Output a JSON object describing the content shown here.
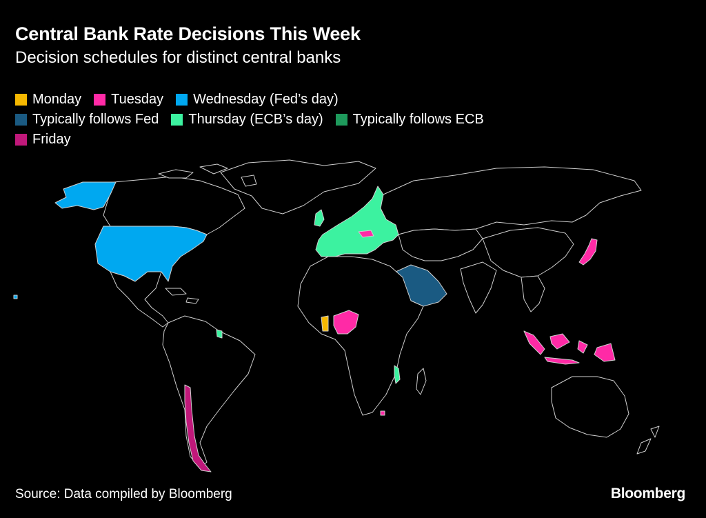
{
  "title": "Central Bank Rate Decisions This Week",
  "subtitle": "Decision schedules for distinct central banks",
  "legend": [
    {
      "label": "Monday",
      "color": "#f5b800"
    },
    {
      "label": "Tuesday",
      "color": "#ff2aa6"
    },
    {
      "label": "Wednesday (Fed’s day)",
      "color": "#00a8f0"
    },
    {
      "label": "Typically follows Fed",
      "color": "#1a5a82"
    },
    {
      "label": "Thursday (ECB’s day)",
      "color": "#3cf2a0"
    },
    {
      "label": "Typically follows ECB",
      "color": "#1e9a5c"
    },
    {
      "label": "Friday",
      "color": "#c0187a"
    }
  ],
  "map": {
    "background": "#000000",
    "land_fill": "#000000",
    "border_color": "#cfcfcf",
    "highlighted_regions": [
      {
        "region": "United States",
        "group": "Wednesday (Fed’s day)"
      },
      {
        "region": "Saudi Arabia",
        "group": "Typically follows Fed"
      },
      {
        "region": "Euro area and Europe",
        "group": "Thursday (ECB’s day)"
      },
      {
        "region": "Hungary",
        "group": "Tuesday"
      },
      {
        "region": "Georgia",
        "group": "Thursday (ECB’s day)"
      },
      {
        "region": "Suriname",
        "group": "Thursday (ECB’s day)"
      },
      {
        "region": "Malawi",
        "group": "Thursday (ECB’s day)"
      },
      {
        "region": "Ghana",
        "group": "Monday"
      },
      {
        "region": "Nigeria",
        "group": "Tuesday"
      },
      {
        "region": "Japan",
        "group": "Tuesday"
      },
      {
        "region": "Indonesia",
        "group": "Tuesday"
      },
      {
        "region": "Lesotho",
        "group": "Tuesday"
      },
      {
        "region": "Chile",
        "group": "Friday"
      }
    ]
  },
  "source": "Source: Data compiled by Bloomberg",
  "brand": "Bloomberg"
}
